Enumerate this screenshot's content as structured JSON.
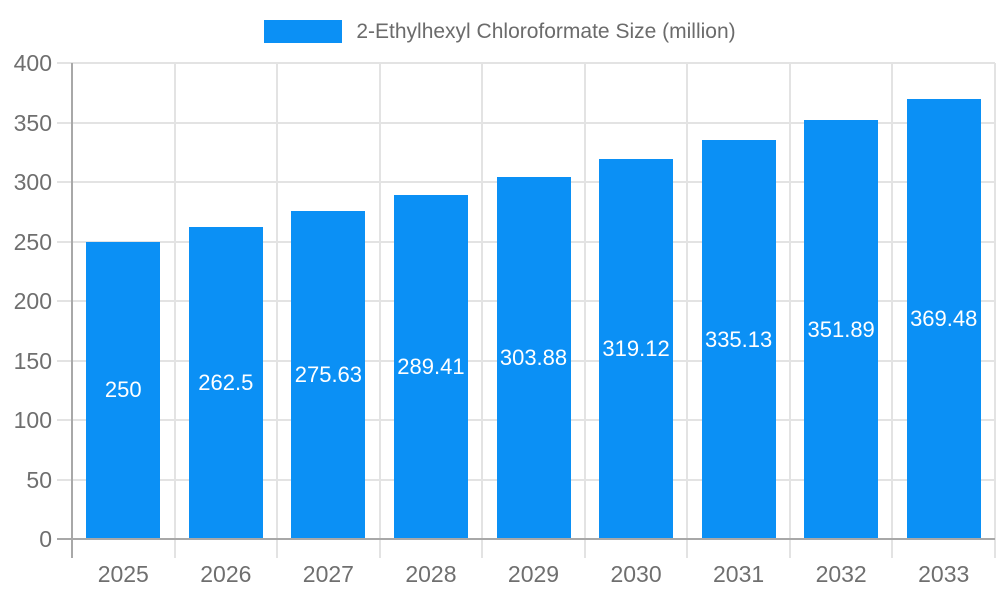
{
  "chart_data": {
    "type": "bar",
    "title": "2-Ethylhexyl Chloroformate Size (million)",
    "legend": [
      "2-Ethylhexyl Chloroformate Size (million)"
    ],
    "legend_position": "top-center",
    "categories": [
      "2025",
      "2026",
      "2027",
      "2028",
      "2029",
      "2030",
      "2031",
      "2032",
      "2033"
    ],
    "values": [
      250,
      262.5,
      275.63,
      289.41,
      303.88,
      319.12,
      335.13,
      351.89,
      369.48
    ],
    "value_labels": [
      "250",
      "262.5",
      "275.63",
      "289.41",
      "303.88",
      "319.12",
      "335.13",
      "351.89",
      "369.48"
    ],
    "xlabel": "",
    "ylabel": "",
    "ylim": [
      0,
      400
    ],
    "ytick_step": 50,
    "ytick_labels": [
      "0",
      "50",
      "100",
      "150",
      "200",
      "250",
      "300",
      "350",
      "400"
    ],
    "grid": true,
    "colors": {
      "bar": "#0b90f5",
      "grid": "#e3e3e3",
      "axis": "#a8a8a8",
      "tick_text": "#6f6f6f",
      "bar_label": "#ffffff",
      "legend_text": "#6b6b6b",
      "background": "#ffffff"
    }
  }
}
